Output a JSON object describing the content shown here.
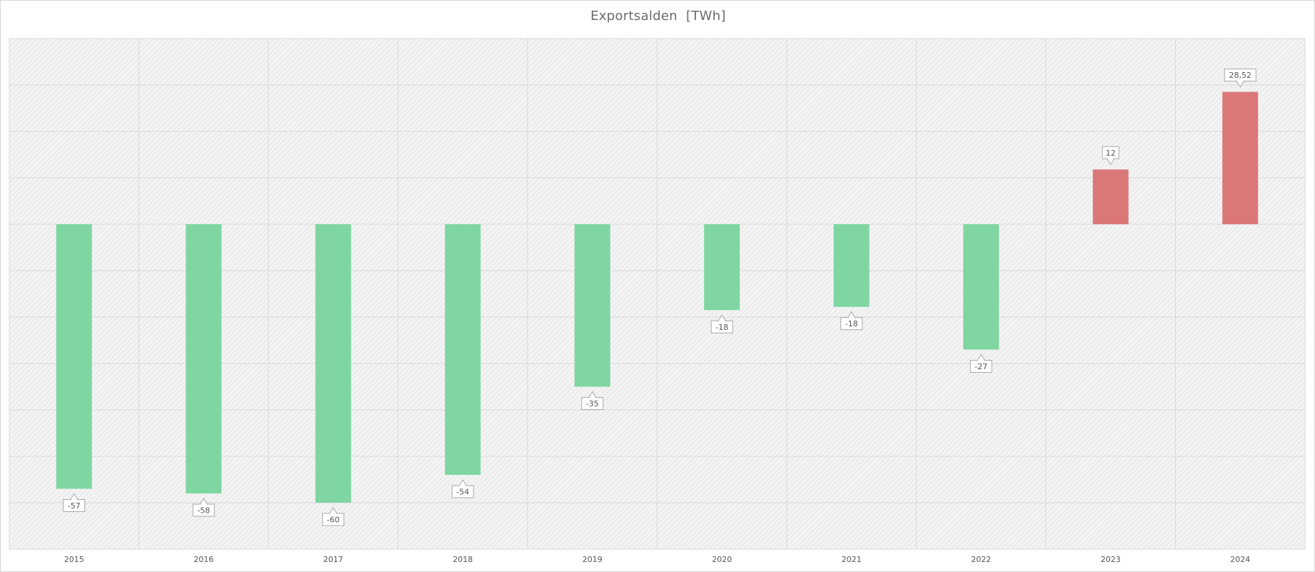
{
  "chart_data": {
    "type": "bar",
    "title": "Exportsalden  [TWh]",
    "xlabel": "",
    "ylabel": "",
    "categories": [
      "2015",
      "2016",
      "2017",
      "2018",
      "2019",
      "2020",
      "2021",
      "2022",
      "2023",
      "2024"
    ],
    "values": [
      -57,
      -58,
      -60,
      -54,
      -35,
      -18.5,
      -17.8,
      -27,
      11.8,
      28.52
    ],
    "data_labels": [
      "-57",
      "-58",
      "-60",
      "-54",
      "-35",
      "-18",
      "-18",
      "-27",
      "12",
      "28,52"
    ],
    "ylim": [
      -70,
      40
    ],
    "grid": true,
    "legend": "none",
    "colors": {
      "negative": "#7fd6a3",
      "positive": "#da7878",
      "grid": "#d9d9d9",
      "plot_background": "#f2f2f2",
      "hatch": "#e4e4e4"
    }
  }
}
